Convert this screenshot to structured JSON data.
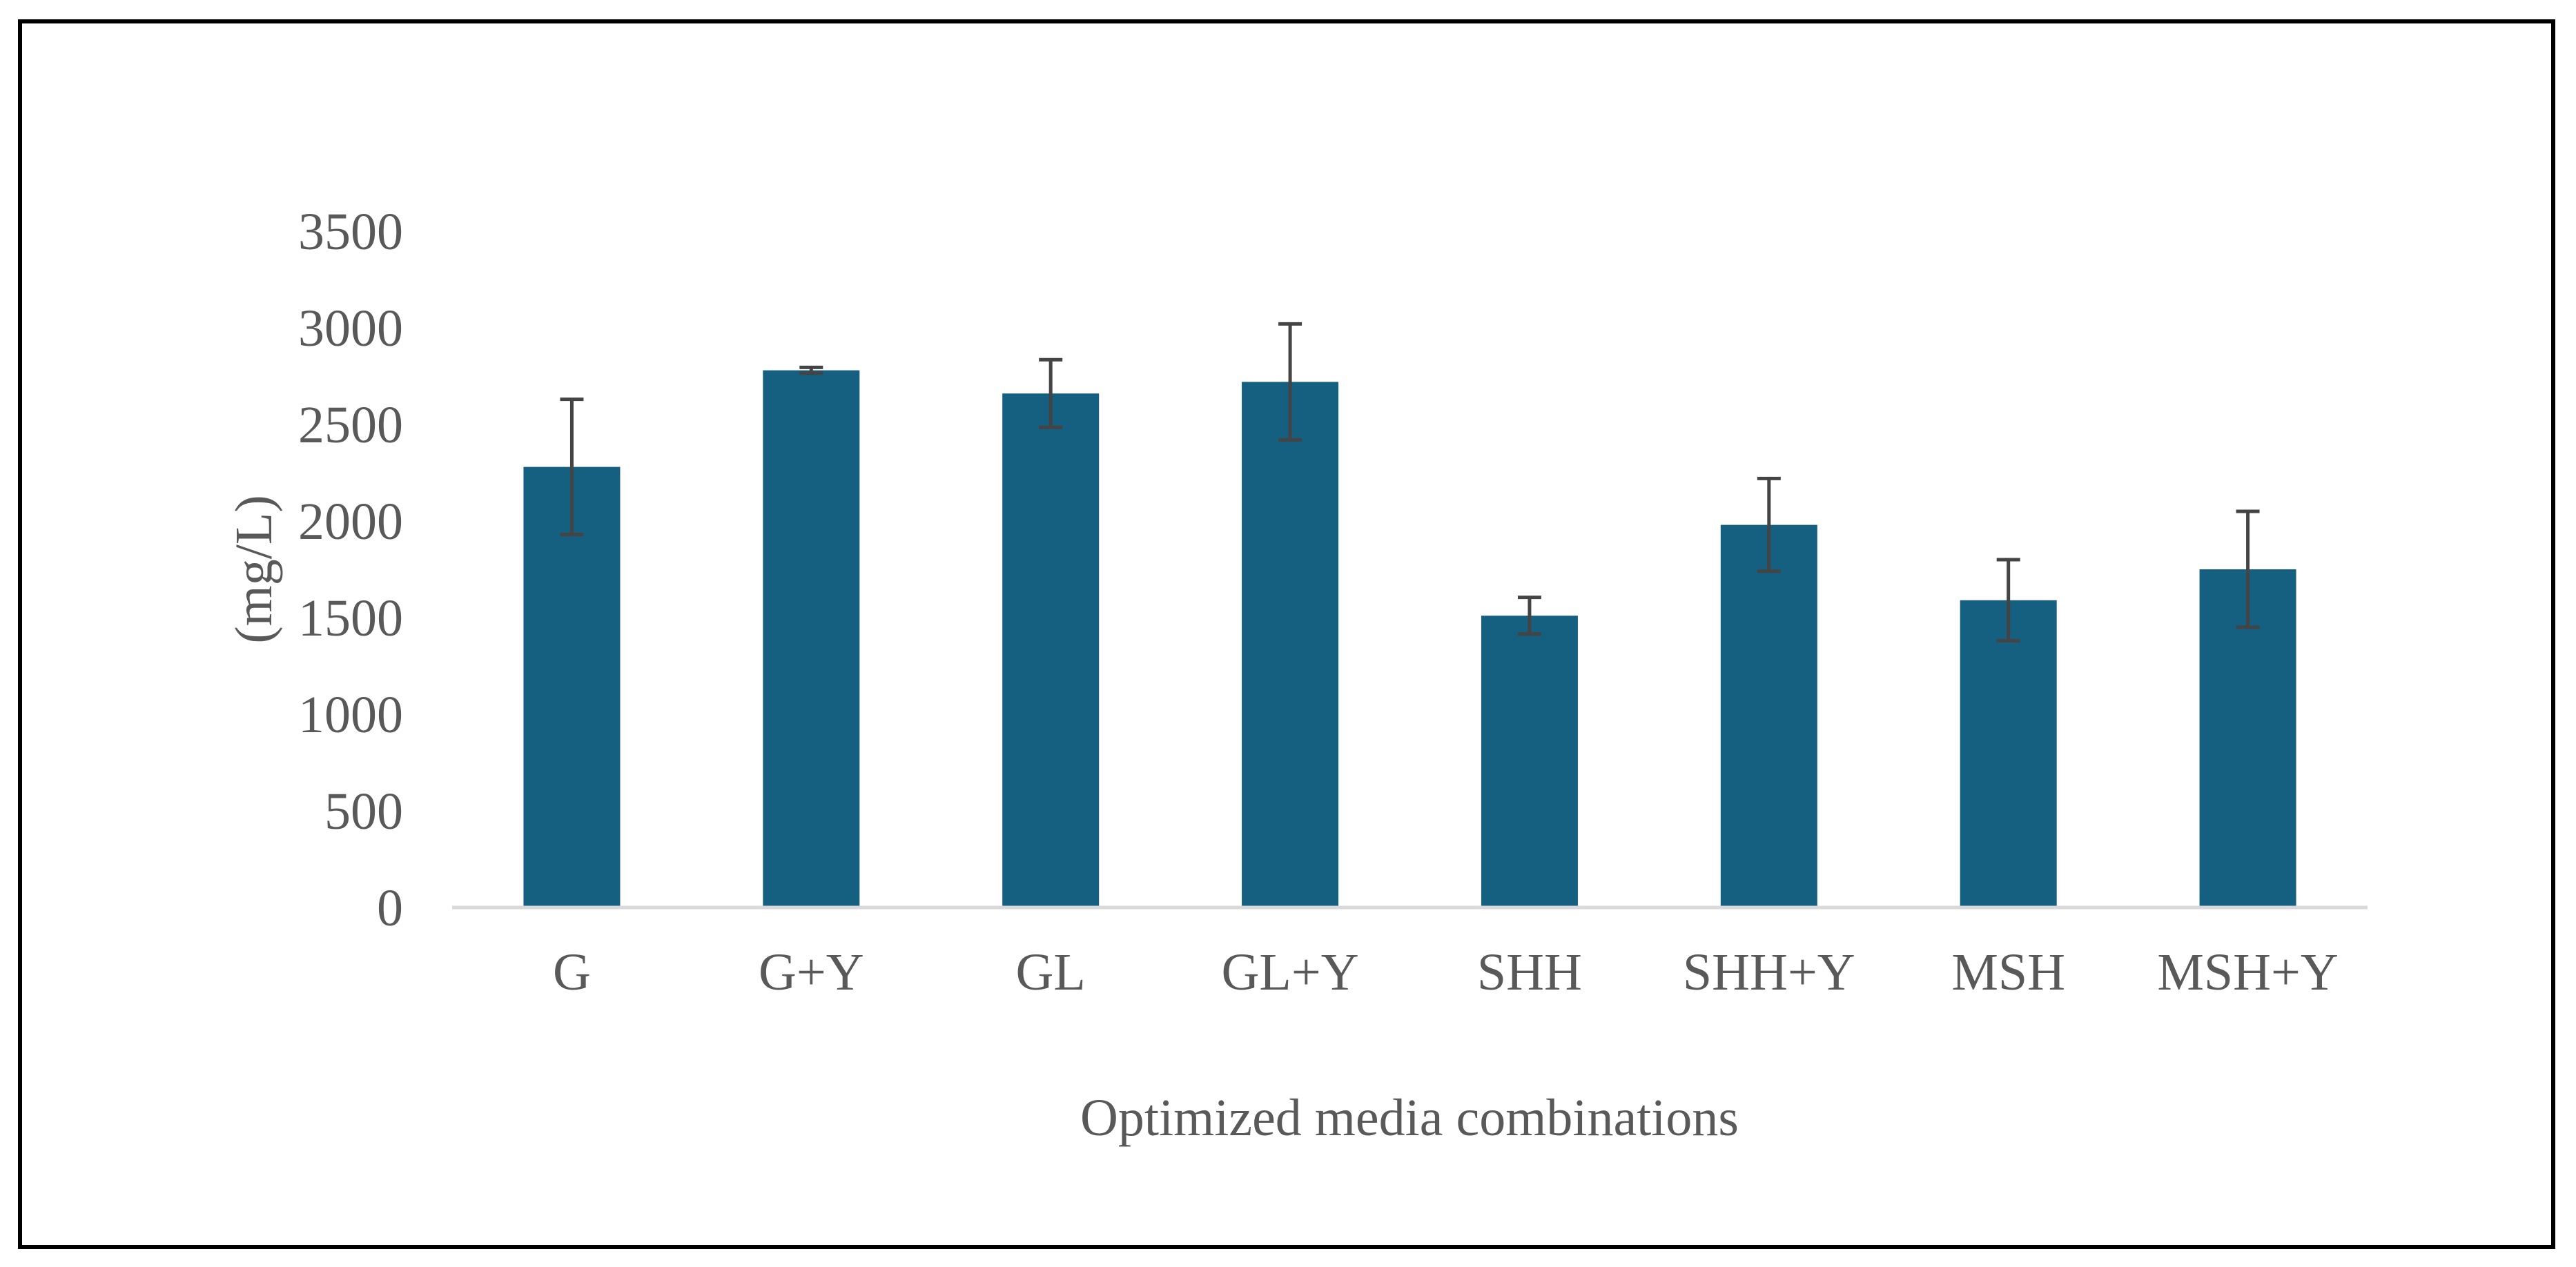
{
  "chart_data": {
    "type": "bar",
    "title": "",
    "xlabel": "Optimized media combinations",
    "ylabel": "(mg/L)",
    "ylim": [
      0,
      3500
    ],
    "yticks": [
      0,
      500,
      1000,
      1500,
      2000,
      2500,
      3000,
      3500
    ],
    "grid": false,
    "categories": [
      "G",
      "G+Y",
      "GL",
      "GL+Y",
      "SHH",
      "SHH+Y",
      "MSH",
      "MSH+Y"
    ],
    "values": [
      2280,
      2780,
      2660,
      2720,
      1510,
      1980,
      1590,
      1750
    ],
    "error": [
      350,
      15,
      175,
      300,
      95,
      240,
      210,
      300
    ],
    "colors": {
      "bar": "#155f81",
      "error_bar": "#444444",
      "axis_line": "#d9d9d9",
      "text": "#595959"
    }
  }
}
